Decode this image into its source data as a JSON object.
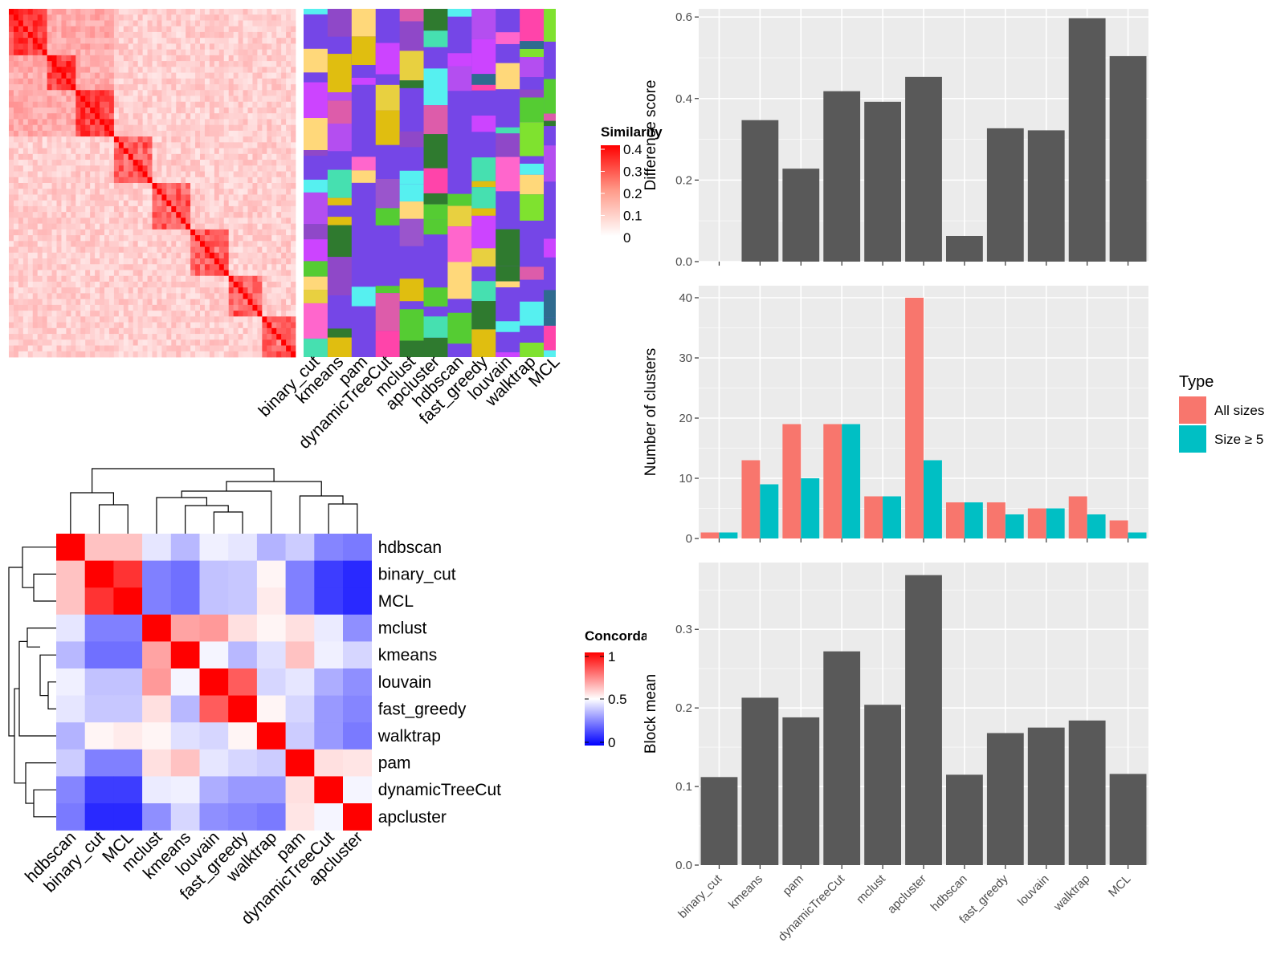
{
  "chart_data": [
    {
      "type": "heatmap",
      "legend_title": "Similarity",
      "legend_ticks": [
        "0.4",
        "0.3",
        "0.2",
        "0.1",
        "0"
      ],
      "method_labels": [
        "binary_cut",
        "kmeans",
        "pam",
        "dynamicTreeCut",
        "mclust",
        "apcluster",
        "hdbscan",
        "fast_greedy",
        "louvain",
        "walktrap",
        "MCL"
      ],
      "colors": {
        "high": "#ff0000",
        "low": "#ffffff",
        "cluster_background": "#7546e7"
      }
    },
    {
      "type": "heatmap",
      "legend_title": "Concordance",
      "legend_ticks": [
        "1",
        "0.5",
        "0"
      ],
      "rows": [
        "hdbscan",
        "binary_cut",
        "MCL",
        "mclust",
        "kmeans",
        "louvain",
        "fast_greedy",
        "walktrap",
        "pam",
        "dynamicTreeCut",
        "apcluster"
      ],
      "columns": [
        "hdbscan",
        "binary_cut",
        "MCL",
        "mclust",
        "kmeans",
        "louvain",
        "fast_greedy",
        "walktrap",
        "pam",
        "dynamicTreeCut",
        "apcluster"
      ],
      "values": [
        [
          1.0,
          0.62,
          0.62,
          0.45,
          0.36,
          0.47,
          0.45,
          0.35,
          0.4,
          0.26,
          0.24
        ],
        [
          0.62,
          1.0,
          0.9,
          0.25,
          0.22,
          0.38,
          0.39,
          0.52,
          0.25,
          0.12,
          0.08
        ],
        [
          0.62,
          0.9,
          1.0,
          0.25,
          0.22,
          0.38,
          0.39,
          0.54,
          0.25,
          0.12,
          0.08
        ],
        [
          0.45,
          0.25,
          0.25,
          1.0,
          0.68,
          0.7,
          0.56,
          0.52,
          0.56,
          0.46,
          0.28
        ],
        [
          0.36,
          0.22,
          0.22,
          0.68,
          1.0,
          0.48,
          0.36,
          0.44,
          0.62,
          0.47,
          0.42
        ],
        [
          0.47,
          0.38,
          0.38,
          0.7,
          0.48,
          1.0,
          0.82,
          0.42,
          0.45,
          0.34,
          0.28
        ],
        [
          0.45,
          0.39,
          0.39,
          0.56,
          0.36,
          0.82,
          1.0,
          0.52,
          0.42,
          0.3,
          0.26
        ],
        [
          0.35,
          0.52,
          0.54,
          0.52,
          0.44,
          0.42,
          0.52,
          1.0,
          0.4,
          0.3,
          0.24
        ],
        [
          0.4,
          0.25,
          0.25,
          0.56,
          0.62,
          0.45,
          0.42,
          0.4,
          1.0,
          0.56,
          0.55
        ],
        [
          0.26,
          0.12,
          0.12,
          0.46,
          0.47,
          0.34,
          0.3,
          0.3,
          0.56,
          1.0,
          0.48
        ],
        [
          0.24,
          0.08,
          0.08,
          0.28,
          0.42,
          0.28,
          0.26,
          0.24,
          0.55,
          0.48,
          1.0
        ]
      ],
      "colors": {
        "high": "#ff0000",
        "mid": "#ffffff",
        "low": "#0000ff"
      }
    },
    {
      "type": "bar",
      "ylabel": "Difference score",
      "categories": [
        "binary_cut",
        "kmeans",
        "pam",
        "dynamicTreeCut",
        "mclust",
        "apcluster",
        "hdbscan",
        "fast_greedy",
        "louvain",
        "walktrap",
        "MCL"
      ],
      "values": [
        0,
        0.347,
        0.228,
        0.418,
        0.392,
        0.453,
        0.063,
        0.327,
        0.322,
        0.597,
        0.504
      ],
      "ylim": [
        0,
        0.62
      ],
      "yticks": [
        0,
        0.2,
        0.4,
        0.6
      ],
      "ytick_labels": [
        "0.0",
        "0.2",
        "0.4",
        "0.6"
      ],
      "bar_color": "#595959",
      "panel_color": "#ebebeb"
    },
    {
      "type": "bar",
      "ylabel": "Number of clusters",
      "categories": [
        "binary_cut",
        "kmeans",
        "pam",
        "dynamicTreeCut",
        "mclust",
        "apcluster",
        "hdbscan",
        "fast_greedy",
        "louvain",
        "walktrap",
        "MCL"
      ],
      "series": [
        {
          "name": "All sizes",
          "color": "#f8766d",
          "values": [
            1,
            13,
            19,
            19,
            7,
            40,
            6,
            6,
            5,
            7,
            3
          ]
        },
        {
          "name": "Size ≥ 5",
          "color": "#00bfc4",
          "values": [
            1,
            9,
            10,
            19,
            7,
            13,
            6,
            4,
            5,
            4,
            1
          ]
        }
      ],
      "ylim": [
        0,
        42
      ],
      "yticks": [
        0,
        10,
        20,
        30,
        40
      ],
      "ytick_labels": [
        "0",
        "10",
        "20",
        "30",
        "40"
      ],
      "legend_title": "Type",
      "legend_position": "right",
      "panel_color": "#ebebeb"
    },
    {
      "type": "bar",
      "ylabel": "Block mean",
      "categories": [
        "binary_cut",
        "kmeans",
        "pam",
        "dynamicTreeCut",
        "mclust",
        "apcluster",
        "hdbscan",
        "fast_greedy",
        "louvain",
        "walktrap",
        "MCL"
      ],
      "values": [
        0.112,
        0.213,
        0.188,
        0.272,
        0.204,
        0.369,
        0.115,
        0.168,
        0.175,
        0.184,
        0.116
      ],
      "ylim": [
        0,
        0.385
      ],
      "yticks": [
        0,
        0.1,
        0.2,
        0.3
      ],
      "ytick_labels": [
        "0.0",
        "0.1",
        "0.2",
        "0.3"
      ],
      "bar_color": "#595959",
      "panel_color": "#ebebeb"
    }
  ]
}
